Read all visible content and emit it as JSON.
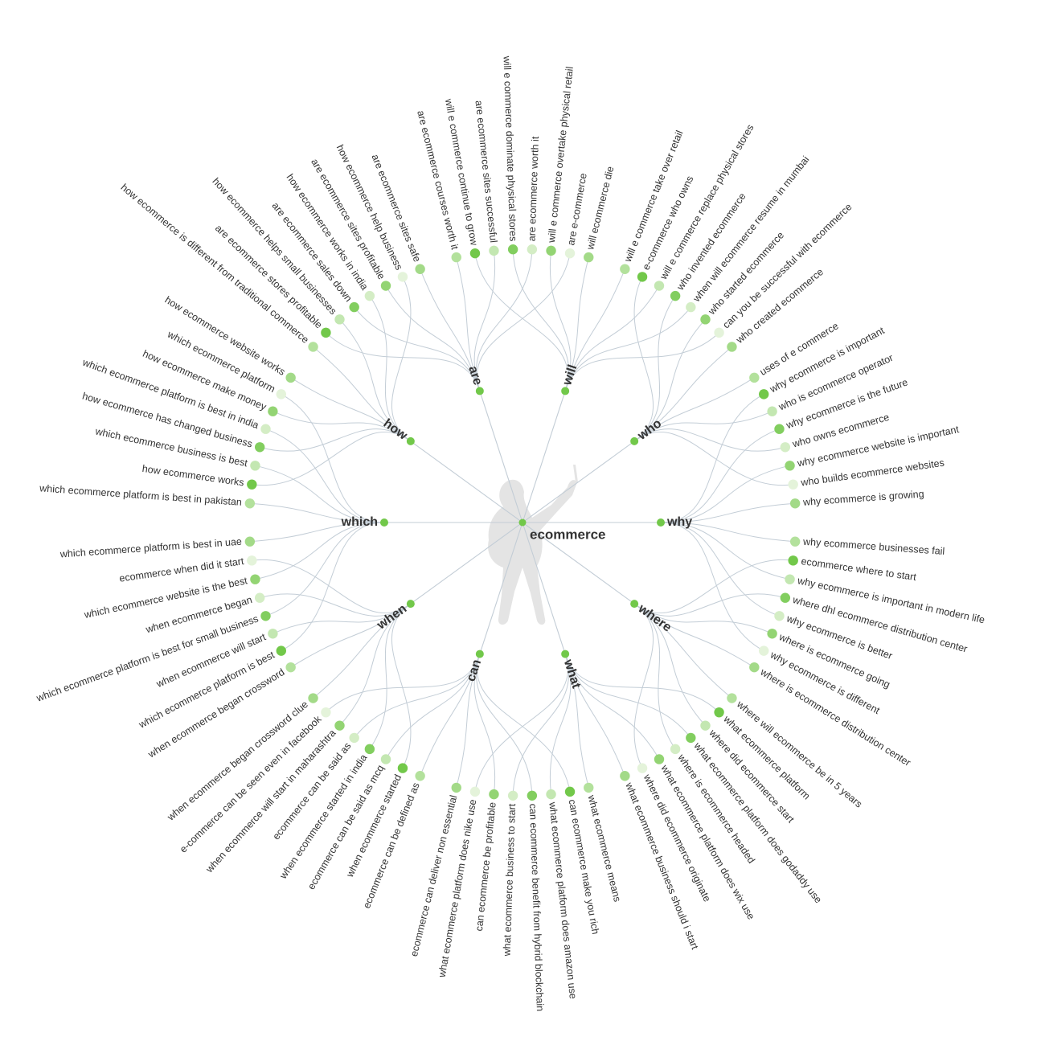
{
  "root": {
    "label": "ecommerce"
  },
  "colors": {
    "link": "#c3cdd6",
    "text": "#333333",
    "node_strong": "#72c84a",
    "node_faint": "#e4f3da",
    "figure": "#e4e4e4"
  },
  "branches": [
    {
      "label": "why",
      "leaves": [
        "why ecommerce is important",
        "why ecommerce is the future",
        "why ecommerce website is important",
        "why ecommerce is growing",
        "why ecommerce businesses fail",
        "why ecommerce is important in modern life",
        "why ecommerce is better",
        "why ecommerce is different"
      ]
    },
    {
      "label": "where",
      "leaves": [
        "ecommerce where to start",
        "where dhl ecommerce distribution center",
        "where is ecommerce going",
        "where is ecommerce distribution center",
        "where will ecommerce be in 5 years",
        "where did ecommerce start",
        "where is ecommerce headed",
        "where did ecommerce originate"
      ]
    },
    {
      "label": "what",
      "leaves": [
        "what ecommerce platform",
        "what ecommerce platform does godaddy use",
        "what ecommerce platform does wix use",
        "what ecommerce business should i start",
        "what ecommerce means",
        "what ecommerce platform does amazon use",
        "what ecommerce business to start",
        "what ecommerce platform does nike use"
      ]
    },
    {
      "label": "can",
      "leaves": [
        "can ecommerce make you rich",
        "can ecommerce benefit from hybrid blockchain",
        "can ecommerce be profitable",
        "ecommerce can deliver non essential",
        "ecommerce can be defined as",
        "ecommerce can be said as mcq",
        "ecommerce can be said as",
        "e-commerce can be seen even in facebook"
      ]
    },
    {
      "label": "when",
      "leaves": [
        "when ecommerce started",
        "when ecommerce started in india",
        "when ecommerce will start in maharashtra",
        "when ecommerce began crossword clue",
        "when ecommerce began crossword",
        "when ecommerce will start",
        "when ecommerce began",
        "ecommerce when did it start"
      ]
    },
    {
      "label": "which",
      "leaves": [
        "which ecommerce platform is best",
        "which ecommerce platform is best for small business",
        "which ecommerce website is the best",
        "which ecommerce platform is best in uae",
        "which ecommerce platform is best in pakistan",
        "which ecommerce business is best",
        "which ecommerce platform is best in india",
        "which ecommerce platform"
      ]
    },
    {
      "label": "how",
      "leaves": [
        "how ecommerce works",
        "how ecommerce has changed business",
        "how ecommerce make money",
        "how ecommerce website works",
        "how ecommerce is different from traditional commerce",
        "how ecommerce helps small businesses",
        "how ecommerce works in india",
        "how ecommerce help business"
      ]
    },
    {
      "label": "are",
      "leaves": [
        "are ecommerce stores profitable",
        "are ecommerce sales down",
        "are ecommerce sites profitable",
        "are ecommerce sites safe",
        "are ecommerce courses worth it",
        "are ecommerce sites successful",
        "are ecommerce worth it",
        "are e-commerce"
      ]
    },
    {
      "label": "will",
      "leaves": [
        "will e commerce continue to grow",
        "will e commerce dominate physical stores",
        "will e commerce overtake physical retail",
        "will ecommerce die",
        "will e commerce take over retail",
        "will e commerce replace physical stores",
        "when will ecommerce resume in mumbai",
        "can you be successful with ecommerce"
      ]
    },
    {
      "label": "who",
      "leaves": [
        "e-commerce who owns",
        "who invented ecommerce",
        "who started ecommerce",
        "who created ecommerce",
        "uses of e commerce",
        "who is ecommerce operator",
        "who owns ecommerce",
        "who builds ecommerce websites"
      ]
    }
  ]
}
